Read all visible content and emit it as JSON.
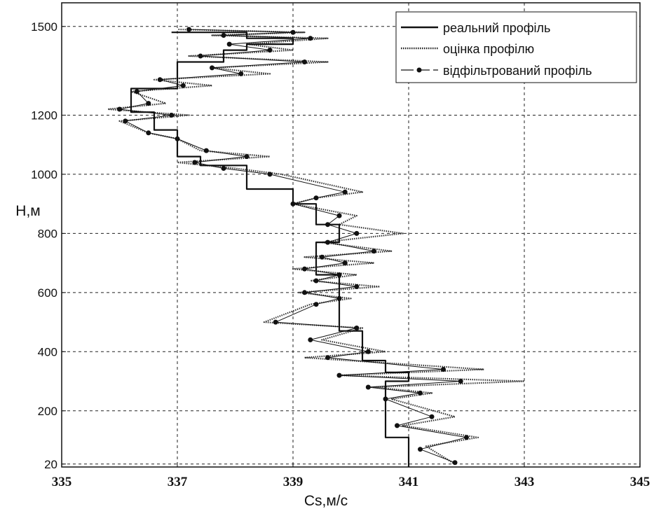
{
  "chart_data": {
    "type": "line",
    "xlabel": "Cs,м/с",
    "ylabel": "Н,м",
    "xlim": [
      335,
      345
    ],
    "ylim": [
      10,
      1580
    ],
    "xticks": [
      335,
      337,
      339,
      341,
      343,
      345
    ],
    "yticks": [
      20,
      200,
      400,
      600,
      800,
      1000,
      1200,
      1500
    ],
    "grid": true,
    "legend_position": "top-right",
    "legend": [
      "реальний профіль",
      "оцінка профілю",
      "відфільтрований профіль"
    ],
    "series": [
      {
        "name": "реальний профіль",
        "style": "solid",
        "color": "#111111",
        "x": [
          341.0,
          341.0,
          340.6,
          340.6,
          341.0,
          341.0,
          340.6,
          340.6,
          340.2,
          340.2,
          339.8,
          339.8,
          339.4,
          339.4,
          339.8,
          339.8,
          339.4,
          339.4,
          339.0,
          339.0,
          338.2,
          338.2,
          337.4,
          337.4,
          337.0,
          337.0,
          336.6,
          336.6,
          336.2,
          336.2,
          337.0,
          337.0,
          337.8,
          337.8,
          338.2,
          338.2,
          339.0,
          339.0,
          338.2,
          338.2,
          336.9
        ],
        "y": [
          10,
          110,
          110,
          300,
          300,
          330,
          330,
          370,
          370,
          470,
          470,
          660,
          660,
          770,
          770,
          830,
          830,
          900,
          900,
          950,
          950,
          1030,
          1030,
          1060,
          1060,
          1150,
          1150,
          1210,
          1210,
          1290,
          1290,
          1380,
          1380,
          1420,
          1420,
          1440,
          1440,
          1460,
          1460,
          1480,
          1480
        ]
      },
      {
        "name": "оцінка профілю",
        "style": "dotted",
        "color": "#333333",
        "x": [
          341.8,
          341.3,
          342.2,
          340.9,
          341.8,
          340.7,
          341.4,
          340.4,
          343.0,
          339.8,
          342.3,
          339.2,
          340.6,
          339.5,
          340.2,
          338.5,
          339.3,
          340.0,
          339.1,
          340.5,
          339.3,
          340.1,
          339.0,
          340.4,
          339.2,
          340.7,
          339.5,
          340.9,
          339.8,
          340.1,
          339.0,
          339.4,
          340.2,
          338.8,
          338.0,
          337.0,
          338.6,
          337.4,
          337.0,
          336.5,
          336.0,
          337.2,
          335.8,
          336.8,
          336.2,
          337.6,
          336.6,
          338.6,
          337.6,
          339.6,
          337.2,
          339.0,
          338.2,
          339.6,
          337.6,
          339.2,
          337.0
        ],
        "y": [
          20,
          80,
          110,
          150,
          180,
          240,
          260,
          280,
          300,
          320,
          340,
          380,
          400,
          440,
          480,
          500,
          560,
          580,
          600,
          620,
          640,
          660,
          680,
          700,
          720,
          740,
          770,
          800,
          830,
          860,
          900,
          920,
          940,
          1000,
          1020,
          1040,
          1060,
          1080,
          1120,
          1140,
          1180,
          1200,
          1220,
          1240,
          1280,
          1300,
          1320,
          1340,
          1360,
          1380,
          1400,
          1420,
          1440,
          1460,
          1470,
          1480,
          1490
        ]
      },
      {
        "name": "відфільтрований профіль",
        "style": "solid-marker",
        "color": "#111111",
        "x": [
          341.8,
          341.2,
          342.0,
          340.8,
          341.4,
          340.6,
          341.2,
          340.3,
          341.9,
          339.8,
          341.6,
          339.6,
          340.3,
          339.3,
          340.1,
          338.7,
          339.4,
          339.8,
          339.2,
          340.1,
          339.4,
          339.8,
          339.2,
          339.9,
          339.5,
          340.4,
          339.6,
          340.1,
          339.6,
          339.8,
          339.0,
          339.4,
          339.9,
          338.6,
          337.8,
          337.3,
          338.2,
          337.5,
          337.0,
          336.5,
          336.1,
          336.9,
          336.0,
          336.5,
          336.3,
          337.1,
          336.7,
          338.1,
          337.6,
          339.2,
          337.4,
          338.6,
          337.9,
          339.3,
          337.8,
          339.0,
          337.2
        ],
        "y": [
          25,
          70,
          110,
          150,
          180,
          240,
          260,
          280,
          300,
          320,
          340,
          380,
          400,
          440,
          480,
          500,
          560,
          580,
          600,
          620,
          640,
          660,
          680,
          700,
          720,
          740,
          770,
          800,
          830,
          860,
          900,
          920,
          940,
          1000,
          1020,
          1040,
          1060,
          1080,
          1120,
          1140,
          1180,
          1200,
          1220,
          1240,
          1280,
          1300,
          1320,
          1340,
          1360,
          1380,
          1400,
          1420,
          1440,
          1460,
          1470,
          1480,
          1490
        ]
      }
    ]
  }
}
